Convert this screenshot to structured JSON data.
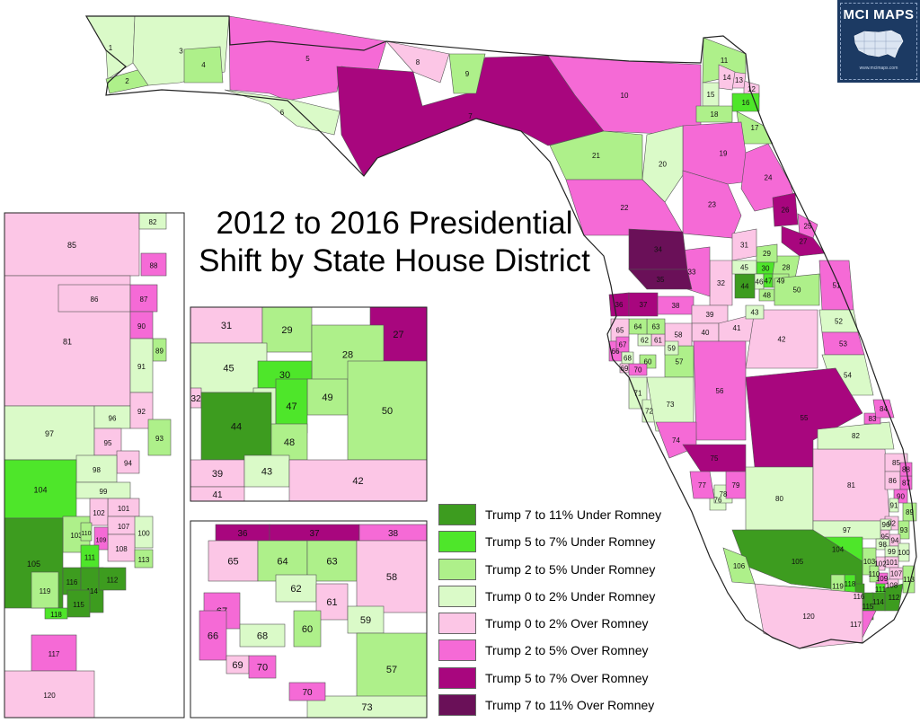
{
  "title": [
    "2012 to 2016 Presidential",
    "Shift by State House District"
  ],
  "badge": {
    "title": "MCI MAPS",
    "url": "www.mcimaps.com"
  },
  "colors": {
    "d1": "#3d9c1f",
    "d2": "#4ee62a",
    "d3": "#aef08a",
    "d4": "#dafac8",
    "d5": "#fcc6e6",
    "d6": "#f56ad6",
    "d7": "#a8067e",
    "d8": "#6a1058"
  },
  "legend": [
    {
      "label": "Trump 7 to 11% Under Romney",
      "color": "#3d9c1f"
    },
    {
      "label": "Trump 5 to 7% Under Romney",
      "color": "#4ee62a"
    },
    {
      "label": "Trump 2 to 5% Under Romney",
      "color": "#aef08a"
    },
    {
      "label": "Trump 0 to 2% Under Romney",
      "color": "#dafac8"
    },
    {
      "label": "Trump 0 to 2% Over Romney",
      "color": "#fcc6e6"
    },
    {
      "label": "Trump 2 to 5% Over Romney",
      "color": "#f56ad6"
    },
    {
      "label": "Trump 5 to 7% Over Romney",
      "color": "#a8067e"
    },
    {
      "label": "Trump 7 to 11% Over Romney",
      "color": "#6a1058"
    }
  ],
  "districts": {
    "1": "d4",
    "2": "d3",
    "3": "d4",
    "4": "d3",
    "5": "d6",
    "6": "d4",
    "7": "d7",
    "8": "d5",
    "9": "d3",
    "10": "d6",
    "11": "d3",
    "12": "d5",
    "13": "d5",
    "14": "d5",
    "15": "d4",
    "16": "d2",
    "17": "d3",
    "18": "d3",
    "19": "d6",
    "20": "d4",
    "21": "d3",
    "22": "d6",
    "23": "d6",
    "24": "d6",
    "25": "d6",
    "26": "d7",
    "27": "d7",
    "28": "d3",
    "29": "d3",
    "30": "d2",
    "31": "d5",
    "32": "d5",
    "33": "d6",
    "34": "d8",
    "35": "d8",
    "36": "d7",
    "37": "d7",
    "38": "d6",
    "39": "d5",
    "40": "d5",
    "41": "d5",
    "42": "d5",
    "43": "d4",
    "44": "d1",
    "45": "d4",
    "46": "d4",
    "47": "d2",
    "48": "d3",
    "49": "d3",
    "50": "d3",
    "51": "d6",
    "52": "d4",
    "53": "d6",
    "54": "d4",
    "55": "d7",
    "56": "d6",
    "57": "d3",
    "58": "d5",
    "59": "d4",
    "60": "d3",
    "61": "d5",
    "62": "d4",
    "63": "d3",
    "64": "d3",
    "65": "d5",
    "66": "d6",
    "67": "d6",
    "68": "d4",
    "69": "d5",
    "70": "d6",
    "71": "d4",
    "72": "d4",
    "73": "d4",
    "74": "d6",
    "75": "d7",
    "76": "d4",
    "77": "d6",
    "78": "d4",
    "79": "d6",
    "80": "d4",
    "81": "d5",
    "82": "d4",
    "83": "d6",
    "84": "d6",
    "85": "d5",
    "86": "d5",
    "87": "d6",
    "88": "d6",
    "89": "d3",
    "90": "d6",
    "91": "d4",
    "92": "d5",
    "93": "d3",
    "94": "d5",
    "95": "d5",
    "96": "d4",
    "97": "d4",
    "98": "d4",
    "99": "d4",
    "100": "d4",
    "101": "d5",
    "102": "d5",
    "103": "d3",
    "104": "d2",
    "105": "d1",
    "106": "d3",
    "107": "d5",
    "108": "d5",
    "109": "d6",
    "110": "d3",
    "111": "d2",
    "112": "d1",
    "113": "d3",
    "114": "d1",
    "115": "d1",
    "116": "d1",
    "117": "d6",
    "118": "d2",
    "119": "d3",
    "120": "d5"
  }
}
